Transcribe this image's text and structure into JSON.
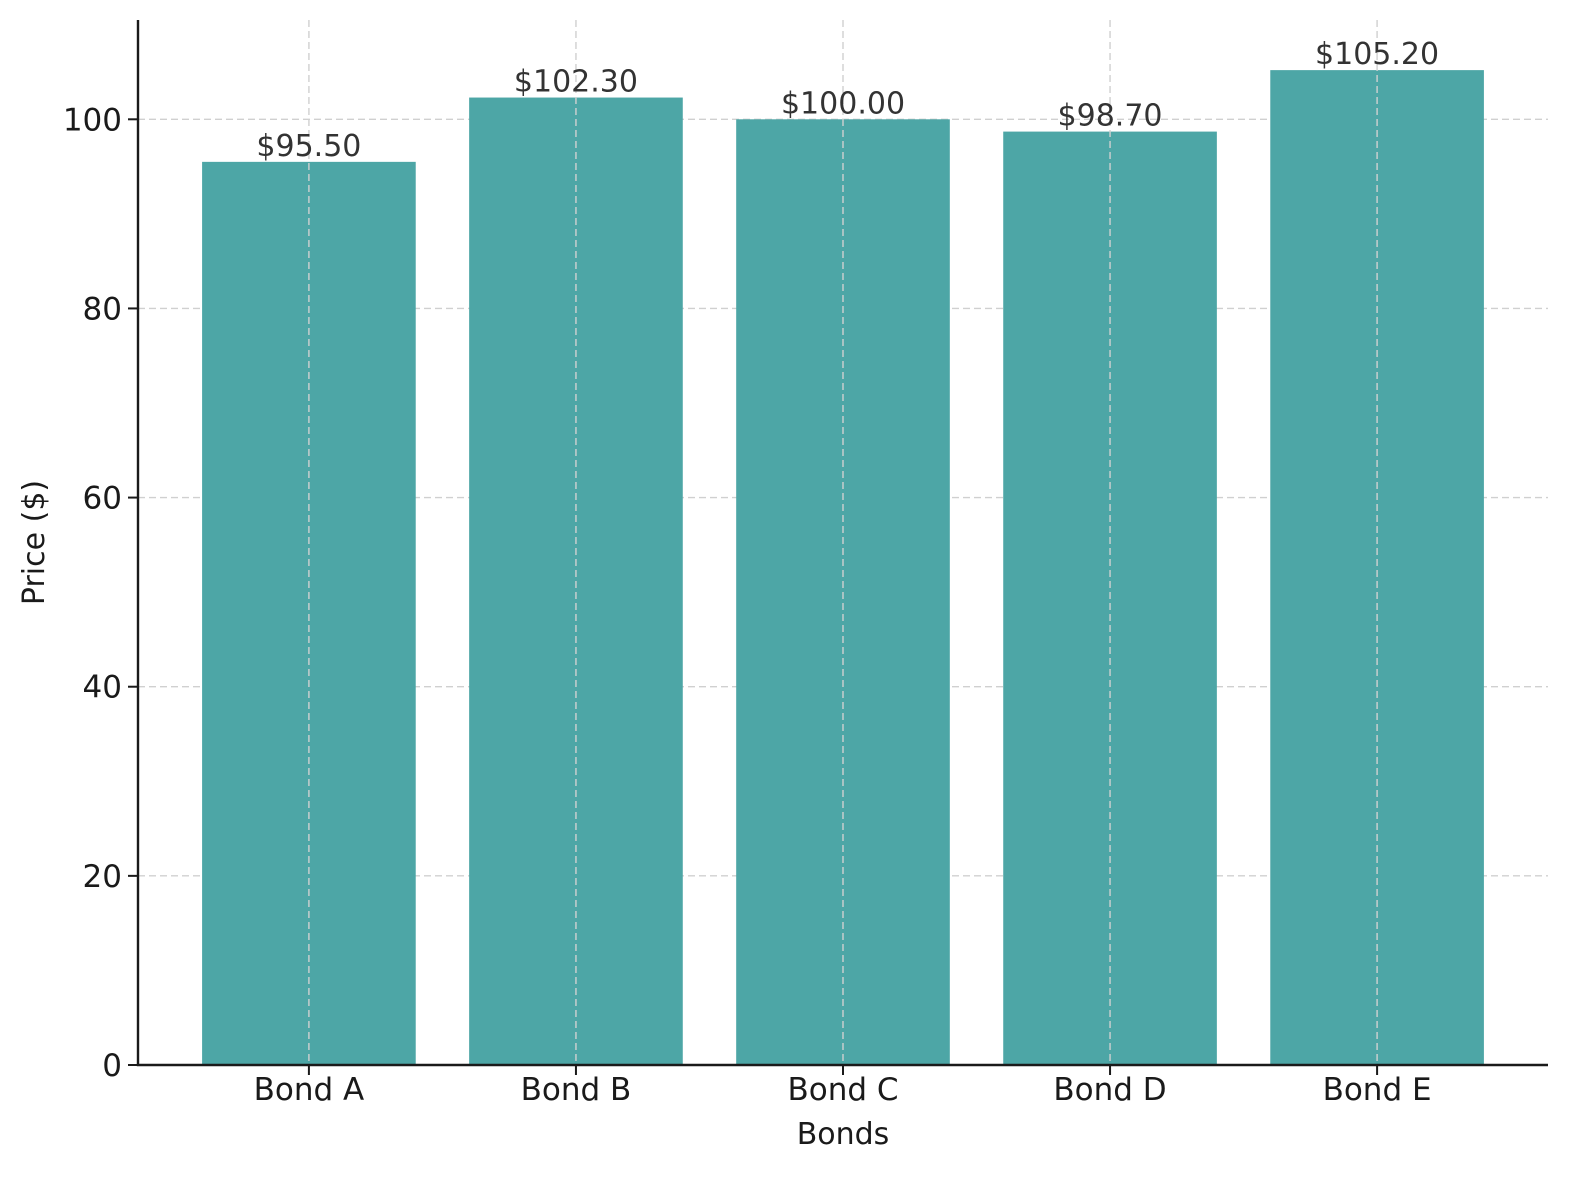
{
  "chart_data": {
    "type": "bar",
    "title": "",
    "xlabel": "Bonds",
    "ylabel": "Price ($)",
    "categories": [
      "Bond A",
      "Bond B",
      "Bond C",
      "Bond D",
      "Bond E"
    ],
    "values": [
      95.5,
      102.3,
      100.0,
      98.7,
      105.2
    ],
    "data_labels": [
      "$95.50",
      "$102.30",
      "$100.00",
      "$98.70",
      "$105.20"
    ],
    "ylim": [
      0,
      110.5
    ],
    "yticks": [
      0,
      20,
      40,
      60,
      80,
      100
    ],
    "grid": true,
    "colors": {
      "bar": "#4da6a6",
      "grid": "#d0d0d0",
      "axis": "#1a1a1a"
    }
  }
}
